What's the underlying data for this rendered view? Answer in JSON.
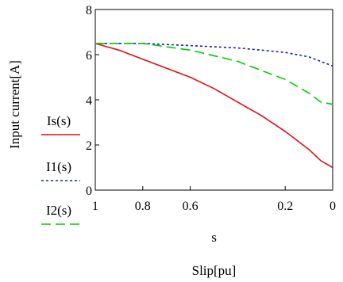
{
  "chart_data": {
    "type": "line",
    "title": "",
    "xlabel": "s",
    "xlabel2": "Slip[pu]",
    "ylabel": "Input current[A]",
    "xlim": [
      1,
      0
    ],
    "ylim": [
      0,
      8
    ],
    "x_ticks": [
      {
        "value": 1,
        "label": "1"
      },
      {
        "value": 0.8,
        "label": "0.8"
      },
      {
        "value": 0.6,
        "label": "0.6"
      },
      {
        "value": 0.2,
        "label": "0.2"
      },
      {
        "value": 0,
        "label": "0"
      }
    ],
    "y_ticks": [
      {
        "value": 0,
        "label": "0"
      },
      {
        "value": 2,
        "label": "2"
      },
      {
        "value": 4,
        "label": "4"
      },
      {
        "value": 6,
        "label": "6"
      },
      {
        "value": 8,
        "label": "8"
      }
    ],
    "grid": false,
    "legend_position": "left",
    "series": [
      {
        "name": "Is(s)",
        "color": "#e01010",
        "dash": "solid",
        "x": [
          1,
          0.9,
          0.8,
          0.7,
          0.6,
          0.5,
          0.4,
          0.3,
          0.2,
          0.1,
          0.05,
          0
        ],
        "y": [
          6.5,
          6.2,
          5.8,
          5.4,
          5.0,
          4.5,
          3.9,
          3.3,
          2.6,
          1.8,
          1.3,
          1.0
        ]
      },
      {
        "name": "I1(s)",
        "color": "#1020d0",
        "dash": "dotted",
        "x": [
          1,
          0.8,
          0.6,
          0.4,
          0.3,
          0.2,
          0.1,
          0
        ],
        "y": [
          6.5,
          6.5,
          6.4,
          6.3,
          6.2,
          6.1,
          5.9,
          5.5
        ]
      },
      {
        "name": "I2(s)",
        "color": "#00cc00",
        "dash": "dashed",
        "x": [
          1,
          0.8,
          0.6,
          0.4,
          0.3,
          0.2,
          0.1,
          0.05,
          0
        ],
        "y": [
          6.5,
          6.5,
          6.2,
          5.7,
          5.3,
          4.9,
          4.3,
          3.9,
          3.8
        ]
      }
    ]
  }
}
